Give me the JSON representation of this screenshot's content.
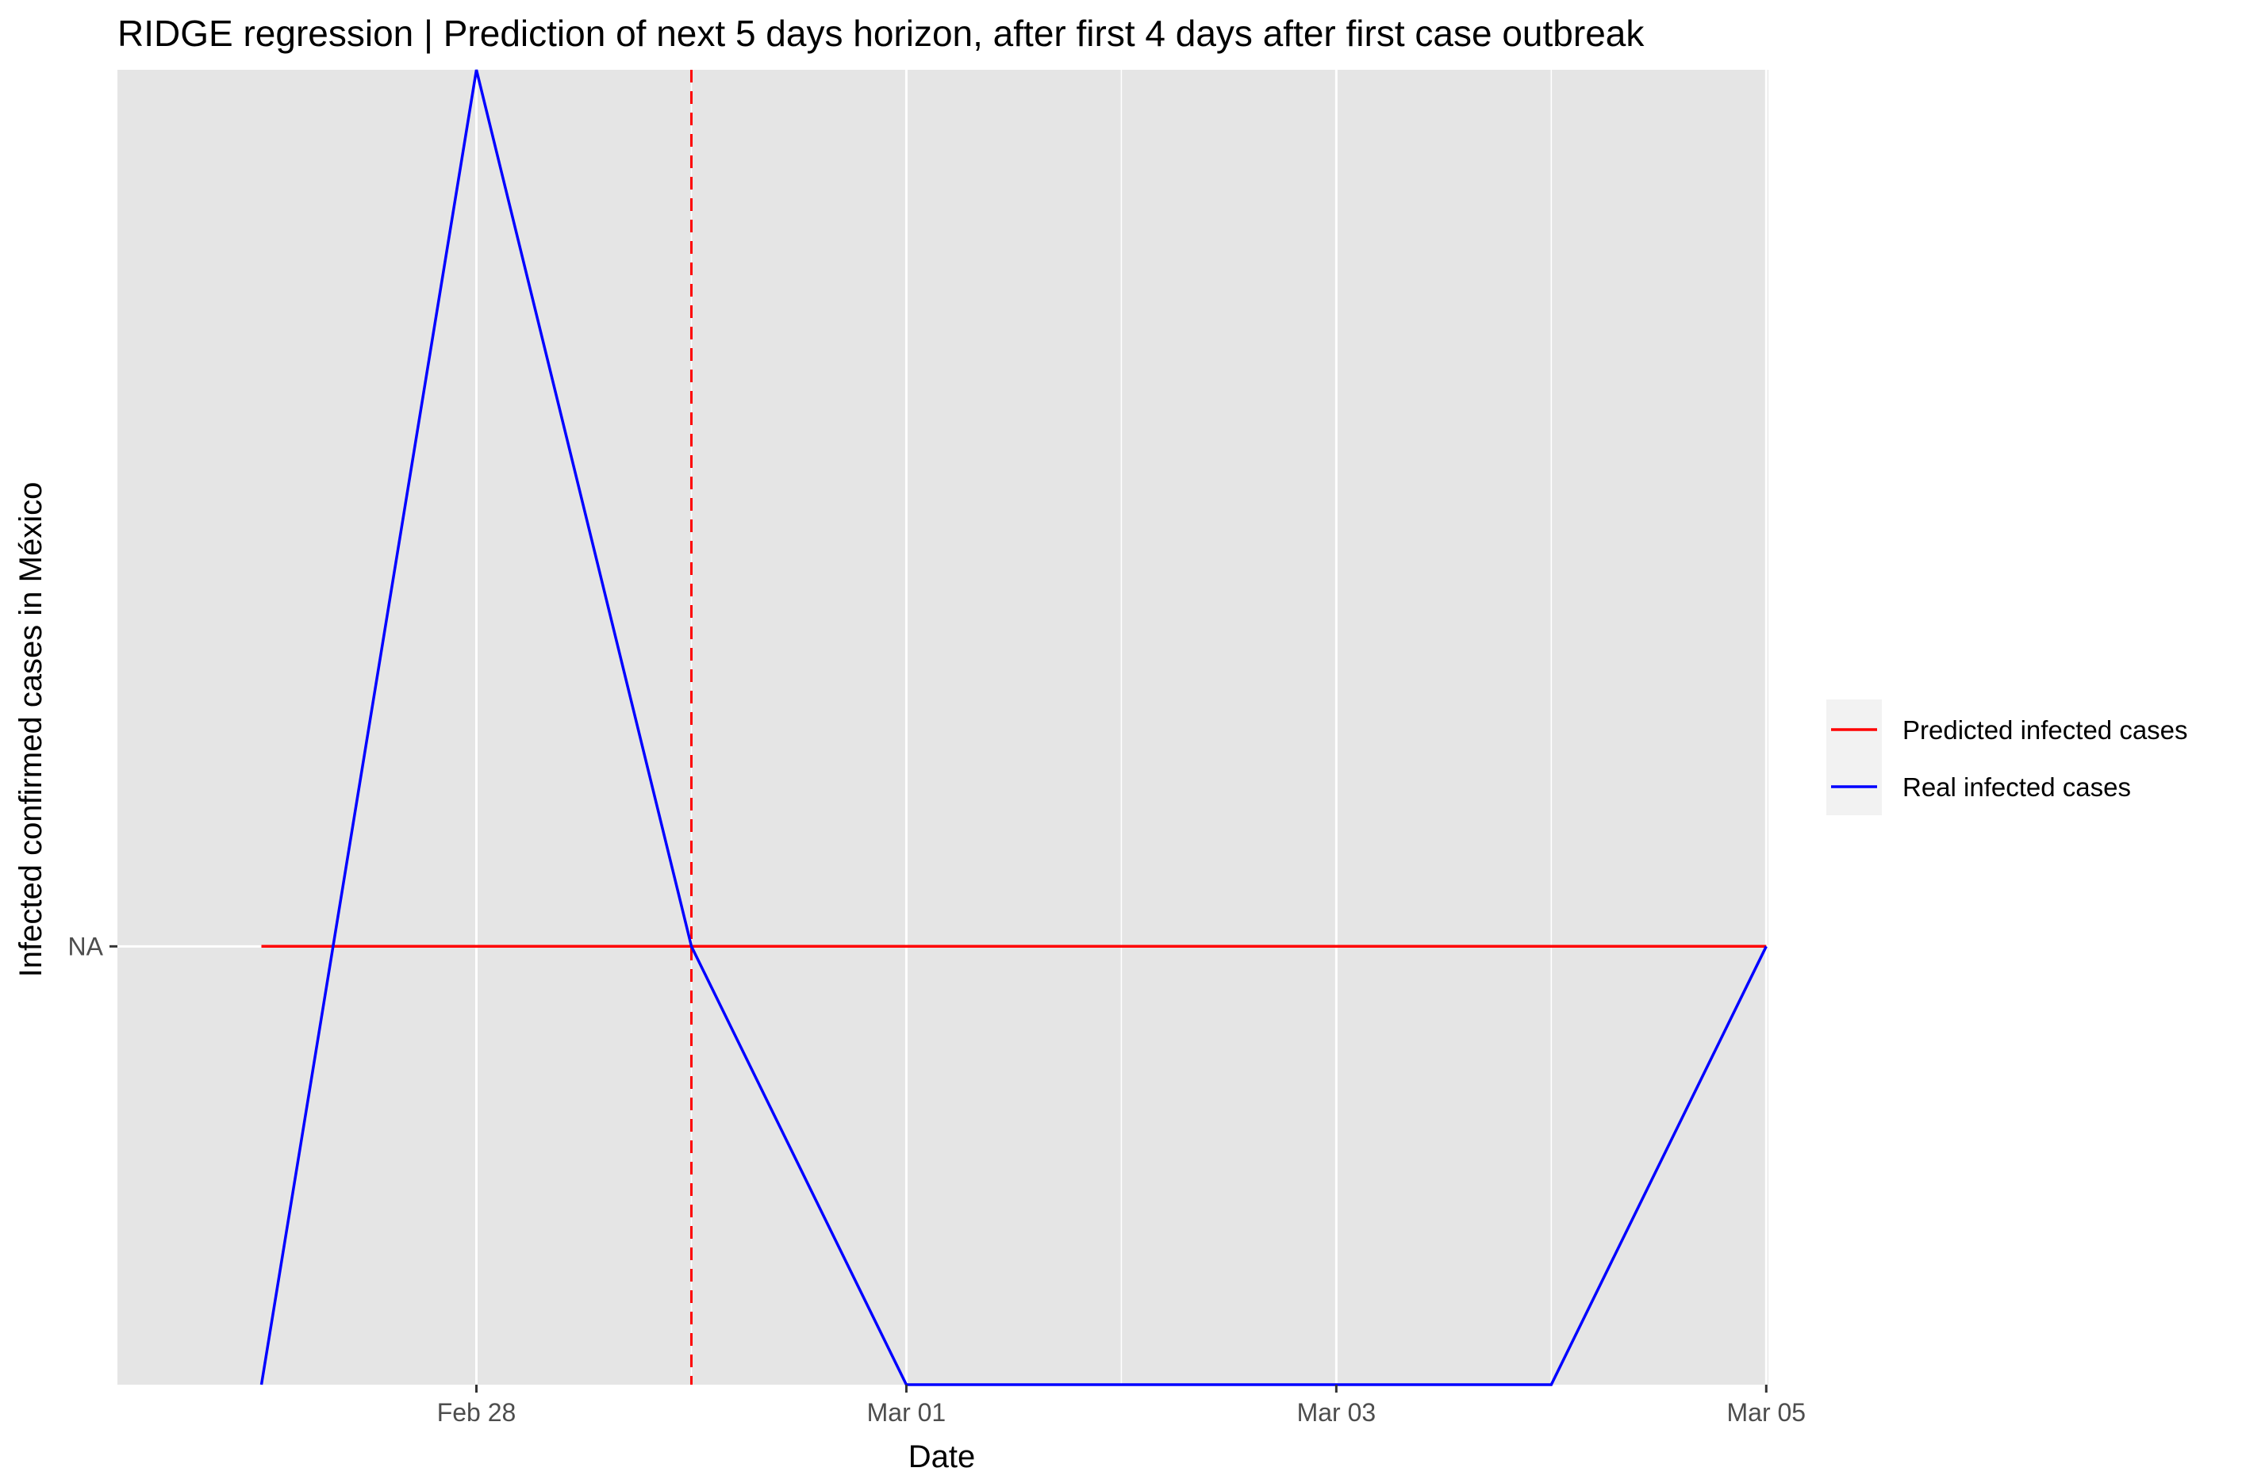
{
  "chart_data": {
    "type": "line",
    "title": "RIDGE regression | Prediction of next 5 days horizon, after first 4 days after first case outbreak",
    "xlabel": "Date",
    "ylabel": "Infected confirmed cases in México",
    "x_ticks": [
      "Feb 28",
      "Mar 01",
      "Mar 03",
      "Mar 05"
    ],
    "y_ticks": [
      "NA"
    ],
    "x_domain": [
      -0.67,
      7.01
    ],
    "y_domain": [
      0.0,
      3.0
    ],
    "series": [
      {
        "name": "Predicted infected cases",
        "color": "#ff0000",
        "x": [
          0,
          1,
          2,
          3,
          4,
          5,
          6,
          7
        ],
        "y": [
          1.0,
          1.0,
          1.0,
          1.0,
          1.0,
          1.0,
          1.0,
          1.0
        ]
      },
      {
        "name": "Real infected cases",
        "color": "#0000ff",
        "x": [
          0,
          1,
          2,
          3,
          4,
          5,
          6,
          7
        ],
        "y": [
          0.0,
          3.0,
          1.0,
          0.0,
          0.0,
          0.0,
          0.0,
          1.0
        ]
      }
    ],
    "vline": {
      "x": 2,
      "color": "#ff0000",
      "style": "dashed"
    },
    "grid": true,
    "legend_position": "right"
  }
}
